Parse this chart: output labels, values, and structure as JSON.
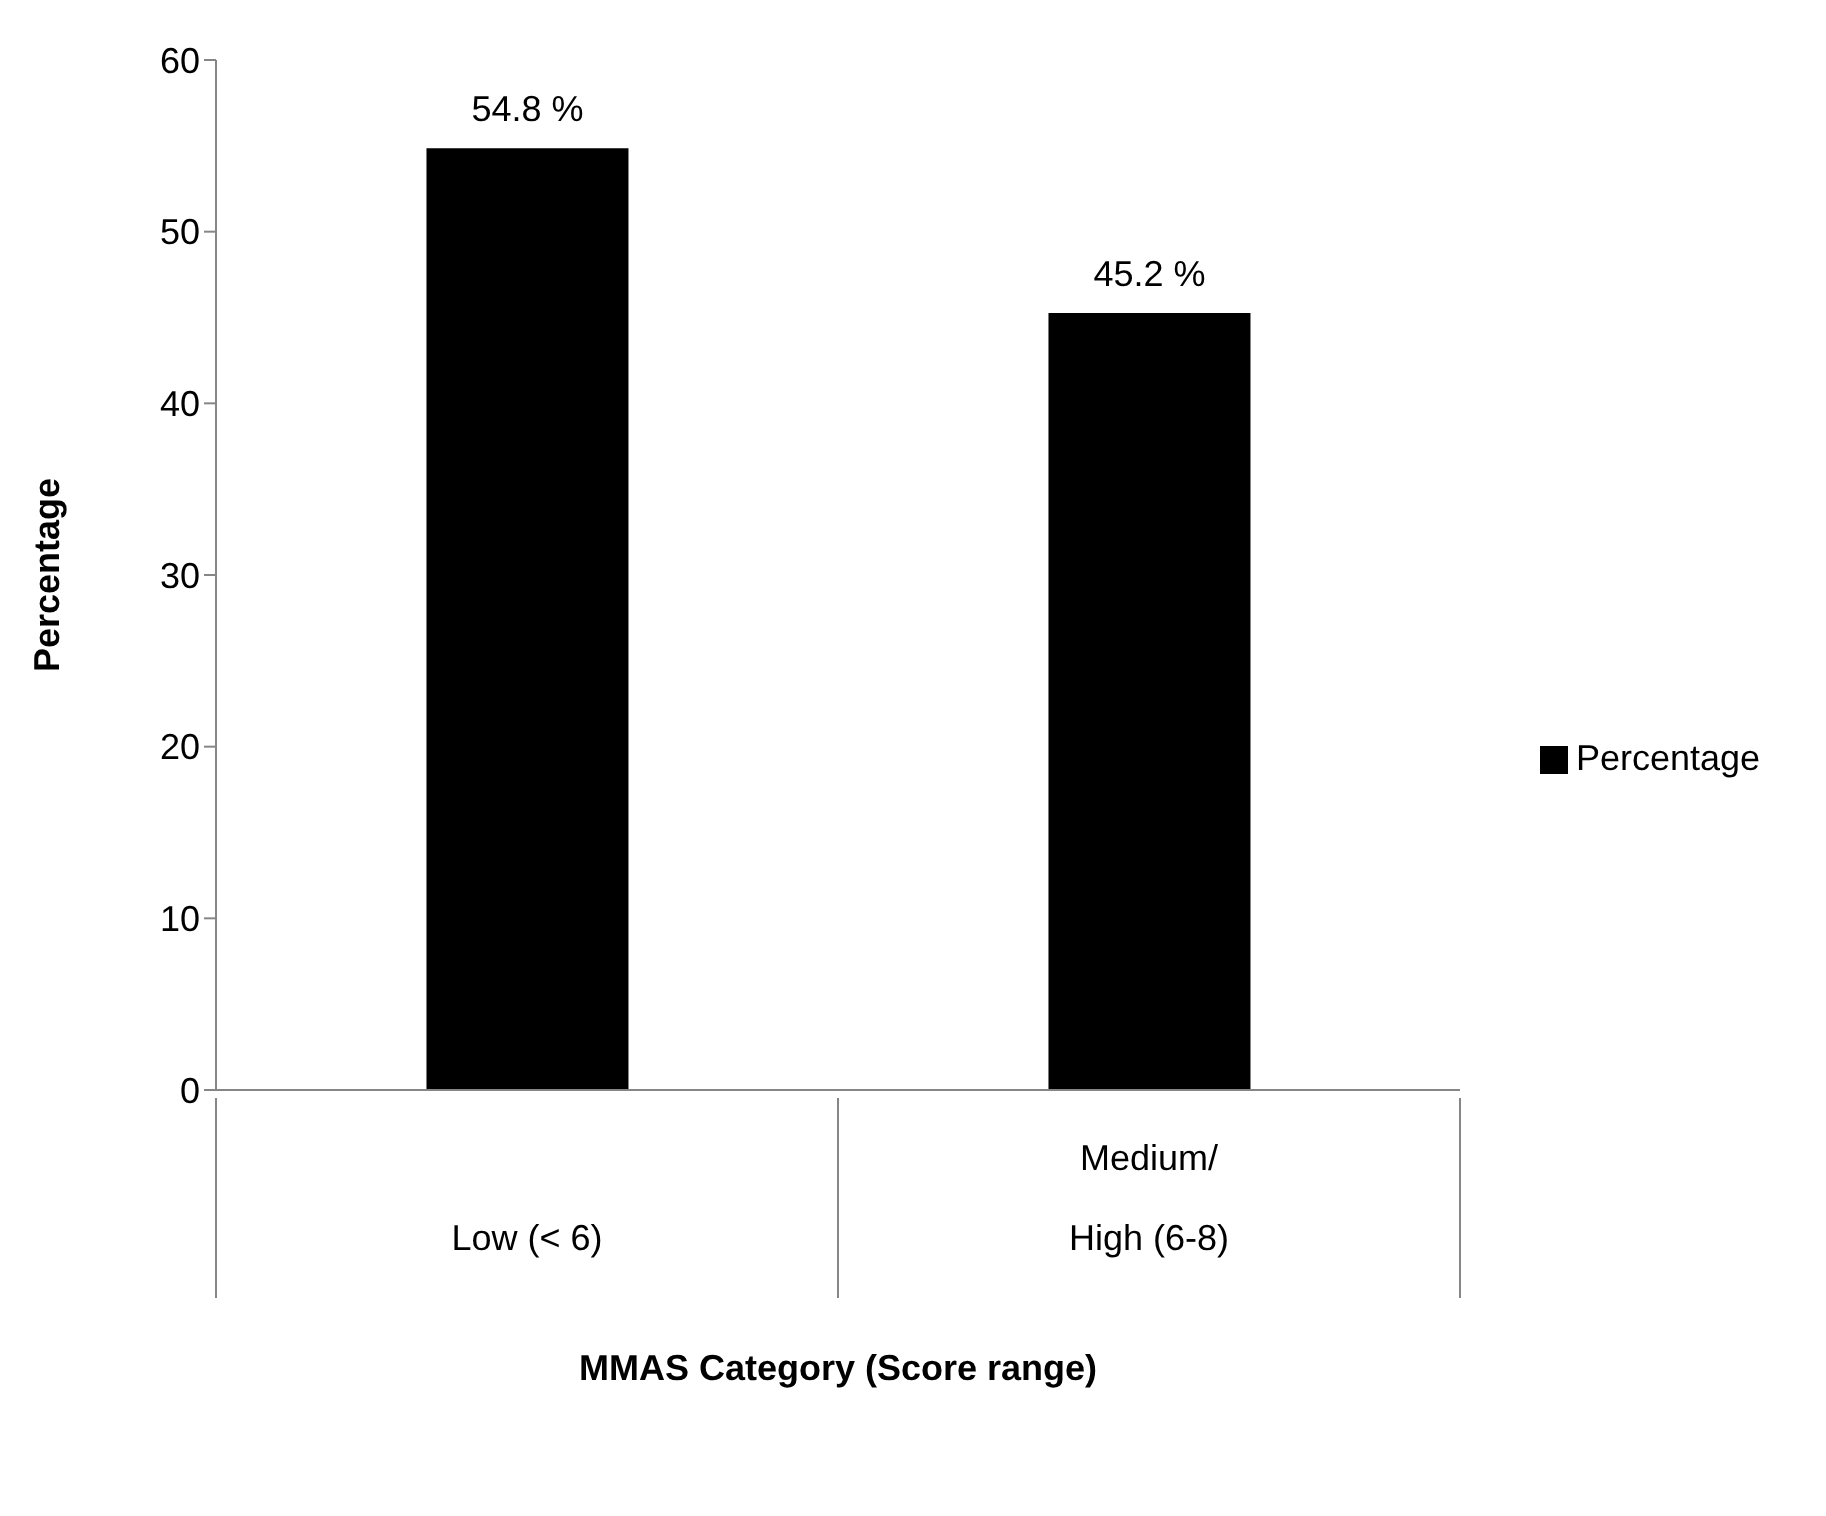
{
  "chart_data": {
    "type": "bar",
    "xlabel": "MMAS Category (Score range)",
    "ylabel": "Percentage",
    "categories": [
      "Low (< 6)",
      "Medium/ High (6-8)"
    ],
    "series": [
      {
        "name": "Percentage",
        "color": "#000000",
        "values": [
          54.8,
          45.2
        ],
        "value_labels": [
          "54.8 %",
          "45.2 %"
        ]
      }
    ],
    "ylim": [
      0,
      60
    ],
    "yticks": [
      0,
      10,
      20,
      30,
      40,
      50,
      60
    ],
    "legend": "right"
  }
}
